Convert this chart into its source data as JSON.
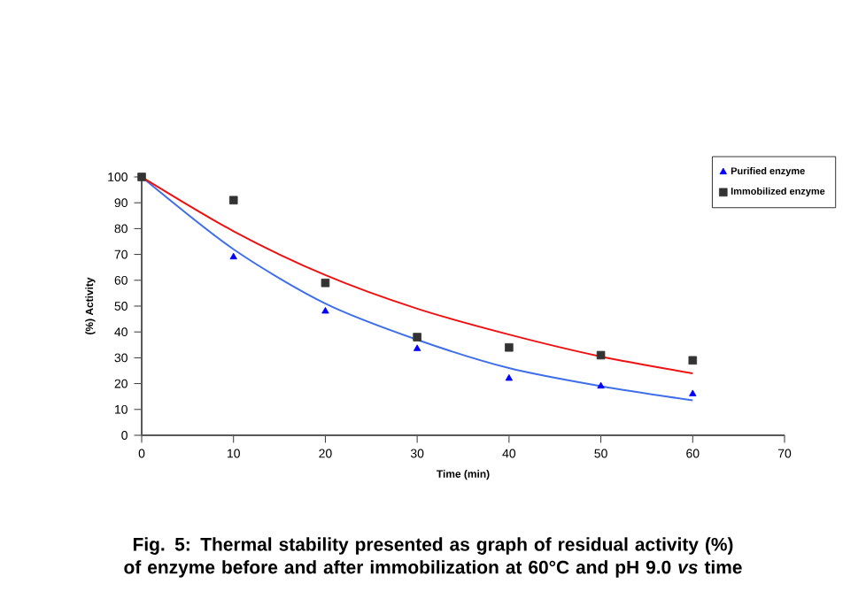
{
  "chart_data": {
    "type": "scatter",
    "title": "Fig. 5: Thermal stability presented as graph of residual activity (%) of enzyme before and after immobilization at 60°C and pH 9.0 *vs* time",
    "xlabel": "Time (min)",
    "ylabel": "(%) Activity",
    "x": [
      0,
      10,
      20,
      30,
      40,
      50,
      60
    ],
    "series": [
      {
        "name": "Purified enzyme",
        "color": "#0000ff",
        "marker": "triangle",
        "values": [
          null,
          69,
          48,
          33.5,
          22,
          19,
          16
        ]
      },
      {
        "name": "Immobilized enzyme",
        "color": "#333333",
        "marker": "square",
        "values": [
          100,
          91,
          59,
          38,
          34,
          31,
          29
        ]
      },
      {
        "type": "line",
        "color": "#3f6fe8",
        "marker": "none",
        "x": [
          0,
          10,
          20,
          30,
          40,
          50,
          60
        ],
        "values": [
          100,
          72,
          51,
          37,
          26,
          19,
          13.5
        ]
      },
      {
        "type": "line",
        "color": "#ee1111",
        "marker": "none",
        "x": [
          0,
          10,
          20,
          30,
          40,
          50,
          60
        ],
        "values": [
          100,
          79,
          62,
          49,
          39,
          30.5,
          24
        ]
      }
    ],
    "xlim": [
      0,
      70
    ],
    "ylim": [
      0,
      100
    ],
    "xticks": [
      0,
      10,
      20,
      30,
      40,
      50,
      60,
      70
    ],
    "yticks": [
      0,
      10,
      20,
      30,
      40,
      50,
      60,
      70,
      80,
      90,
      100
    ],
    "grid": false,
    "legend": "top right"
  }
}
